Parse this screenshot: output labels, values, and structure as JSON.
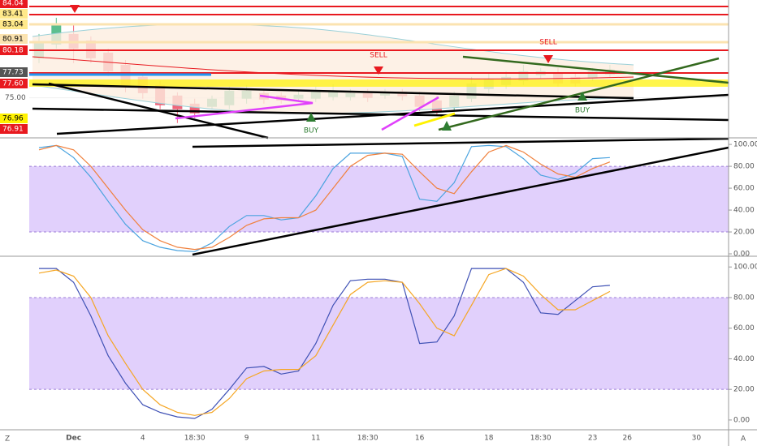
{
  "chart_data": [
    {
      "type": "candlestick",
      "categories": [
        null,
        null,
        "Dec",
        null,
        null,
        null,
        "4",
        null,
        null,
        "18:30",
        null,
        null,
        "9",
        null,
        null,
        null,
        "11",
        null,
        null,
        "18:30",
        null,
        null,
        "16",
        null,
        null,
        null,
        "18",
        null,
        null,
        "18:30",
        null,
        null,
        "23",
        null,
        "26",
        null,
        null,
        null,
        "30"
      ],
      "open": [
        78.76,
        80.07,
        81.07,
        80.45,
        79.3,
        78.14,
        76.99,
        76.22,
        75.22,
        74.45,
        74.15,
        74.3,
        74.92,
        75.45,
        75.22,
        74.92,
        74.92,
        75.07,
        75.07,
        75.45,
        75.22,
        75.6,
        75.22,
        74.76,
        74.15,
        74.92,
        75.84,
        76.22,
        76.6,
        77.15,
        77.38,
        76.99,
        76.84,
        77.23,
        null,
        null,
        null,
        null,
        null
      ],
      "high": [
        81.07,
        82.61,
        81.99,
        80.84,
        79.68,
        78.6,
        77.38,
        76.6,
        75.53,
        74.92,
        75.22,
        76.07,
        76.22,
        75.84,
        75.53,
        75.68,
        76.07,
        76.3,
        75.84,
        75.84,
        75.84,
        75.84,
        75.6,
        75.22,
        75.6,
        76.99,
        77.38,
        77.53,
        78.14,
        77.84,
        77.84,
        77.38,
        77.84,
        78.14,
        null,
        null,
        null,
        null,
        null
      ],
      "low": [
        78.3,
        79.68,
        78.3,
        78.3,
        77.07,
        75.53,
        74.92,
        73.92,
        72.61,
        73.07,
        73.92,
        73.92,
        74.45,
        74.45,
        74.45,
        74.6,
        74.6,
        74.76,
        74.76,
        74.6,
        74.92,
        74.76,
        73.76,
        73.3,
        73.76,
        74.6,
        75.45,
        75.84,
        76.22,
        76.84,
        76.07,
        76.07,
        76.6,
        76.99,
        null,
        null,
        null,
        null,
        null
      ],
      "close": [
        80.3,
        81.99,
        79.68,
        78.76,
        77.53,
        75.99,
        75.45,
        74.3,
        73.92,
        73.53,
        74.92,
        75.68,
        75.68,
        74.84,
        74.76,
        75.3,
        75.6,
        75.6,
        75.45,
        75.0,
        75.53,
        75.15,
        74.15,
        73.68,
        75.22,
        76.37,
        76.76,
        76.99,
        77.53,
        77.53,
        76.37,
        76.37,
        77.53,
        77.68,
        null,
        null,
        null,
        null,
        null
      ],
      "up_color": "#5cbf8f",
      "down_color": "#f0657a",
      "ylim": [
        71.2,
        84.3
      ],
      "yticks": [
        {
          "value": 75,
          "label": "75.00"
        }
      ],
      "price_tags": [
        {
          "value": 84.04,
          "label": "84.04",
          "color": "#e8191f"
        },
        {
          "value": 83.41,
          "label": "83.41",
          "color": "#ffe98a"
        },
        {
          "value": 83.04,
          "label": "83.04",
          "color": "#ffe98a"
        },
        {
          "value": 80.91,
          "label": "80.91",
          "color": "#fbe3b0"
        },
        {
          "value": 80.18,
          "label": "80.18",
          "color": "#e8191f"
        },
        {
          "value": 77.73,
          "label": "77.73",
          "color": "#555555"
        },
        {
          "value": 77.6,
          "label": "77.60",
          "color": "#e8191f"
        },
        {
          "value": 76.96,
          "label": "76.96",
          "color": "#fff200"
        },
        {
          "value": 76.91,
          "label": "76.91",
          "color": "#e8191f"
        }
      ],
      "annotations": [
        "SELL",
        "SELL",
        "BUY",
        "BUY"
      ]
    },
    {
      "type": "line",
      "ylim": [
        -2.2,
        106
      ],
      "yticks": [
        {
          "value": 100,
          "label": "100.00"
        },
        {
          "value": 80,
          "label": "80.00"
        },
        {
          "value": 60,
          "label": "60.00"
        },
        {
          "value": 40,
          "label": "40.00"
        },
        {
          "value": 20,
          "label": "20.00"
        },
        {
          "value": 0,
          "label": "0.00"
        }
      ],
      "band": [
        20,
        80
      ],
      "band_color": "#dcc8fb",
      "series": [
        {
          "color": "#4aa3df",
          "values": [
            97,
            99,
            88,
            70,
            48,
            27,
            12,
            6,
            3,
            2,
            10,
            25,
            35,
            35,
            31,
            33,
            53,
            78,
            92,
            92,
            92,
            89,
            50,
            48,
            65,
            98,
            99,
            98,
            87,
            72,
            68,
            74,
            87,
            88
          ]
        },
        {
          "color": "#f0803c",
          "values": [
            95,
            99,
            95,
            80,
            60,
            40,
            22,
            12,
            6,
            4,
            6,
            15,
            26,
            32,
            33,
            33,
            40,
            60,
            80,
            90,
            92,
            91,
            75,
            60,
            55,
            75,
            93,
            99,
            93,
            82,
            73,
            70,
            78,
            84
          ]
        }
      ]
    },
    {
      "type": "line",
      "ylim": [
        -6.4,
        107
      ],
      "yticks": [
        {
          "value": 100,
          "label": "100.00"
        },
        {
          "value": 80,
          "label": "80.00"
        },
        {
          "value": 60,
          "label": "60.00"
        },
        {
          "value": 40,
          "label": "40.00"
        },
        {
          "value": 20,
          "label": "20.00"
        },
        {
          "value": 0,
          "label": "0.00"
        }
      ],
      "band": [
        20,
        80
      ],
      "band_color": "#dcc8fb",
      "series": [
        {
          "color": "#3f51b5",
          "values": [
            99,
            99,
            90,
            68,
            42,
            24,
            10,
            5,
            2,
            1,
            7,
            20,
            34,
            35,
            30,
            32,
            50,
            75,
            91,
            92,
            92,
            90,
            50,
            51,
            68,
            99,
            99,
            99,
            90,
            70,
            69,
            78,
            87,
            88
          ]
        },
        {
          "color": "#f5a623",
          "values": [
            96,
            98,
            94,
            80,
            55,
            37,
            20,
            10,
            5,
            3,
            5,
            14,
            27,
            32,
            33,
            33,
            42,
            62,
            82,
            90,
            91,
            90,
            76,
            60,
            55,
            75,
            95,
            99,
            94,
            82,
            72,
            72,
            78,
            84
          ]
        }
      ]
    }
  ],
  "ui": {
    "left_corner": "Z",
    "right_corner": "A"
  }
}
